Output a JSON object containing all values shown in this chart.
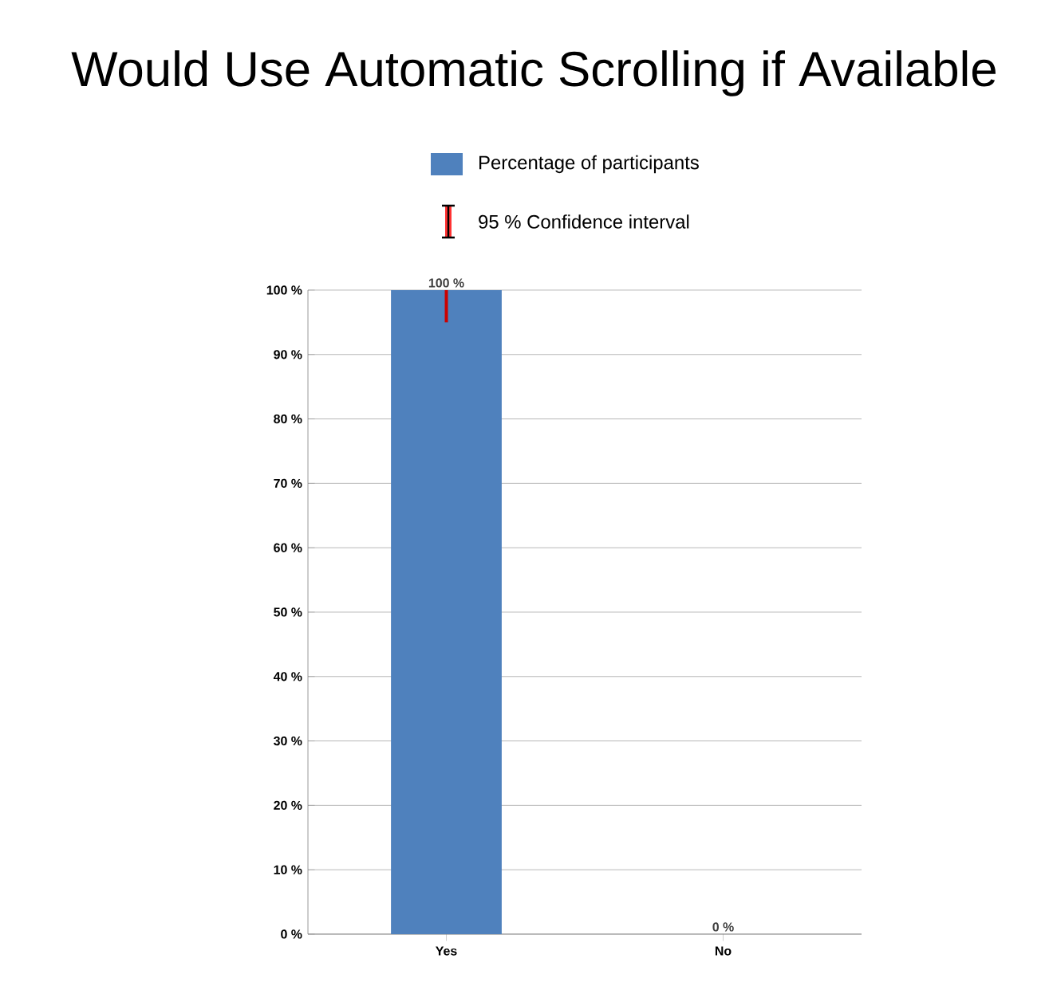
{
  "chart_data": {
    "type": "bar",
    "title": "Would Use Automatic Scrolling if Available",
    "categories": [
      "Yes",
      "No"
    ],
    "series": [
      {
        "name": "Percentage of participants",
        "color": "#4f81bd",
        "values": [
          100,
          0
        ],
        "errors": [
          [
            95,
            100
          ],
          null
        ],
        "value_labels": [
          "100 %",
          "0 %"
        ]
      }
    ],
    "annotations": [
      "95 % Confidence interval"
    ],
    "ylim": [
      0,
      100
    ],
    "yticks": [
      {
        "value": 0,
        "label": "0 %"
      },
      {
        "value": 10,
        "label": "10 %"
      },
      {
        "value": 20,
        "label": "20 %"
      },
      {
        "value": 30,
        "label": "30 %"
      },
      {
        "value": 40,
        "label": "40 %"
      },
      {
        "value": 50,
        "label": "50 %"
      },
      {
        "value": 60,
        "label": "60 %"
      },
      {
        "value": 70,
        "label": "70 %"
      },
      {
        "value": 80,
        "label": "80 %"
      },
      {
        "value": 90,
        "label": "90 %"
      },
      {
        "value": 100,
        "label": "100 %"
      }
    ],
    "grid": "y",
    "legend": "top"
  }
}
